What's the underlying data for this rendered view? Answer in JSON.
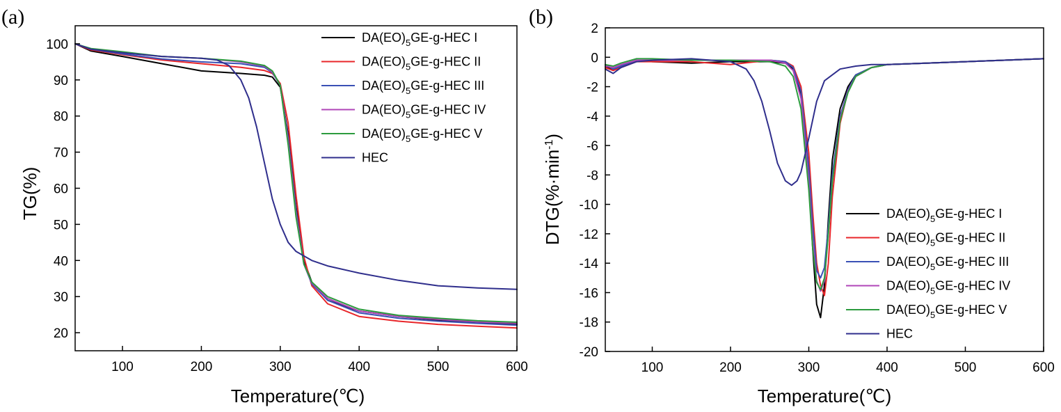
{
  "chart_data": [
    {
      "type": "line",
      "panel_label": "(a)",
      "xlabel": "Temperature(℃)",
      "ylabel": "TG(%)",
      "xlim": [
        40,
        600
      ],
      "ylim": [
        15,
        105
      ],
      "xticks": [
        "100",
        "200",
        "300",
        "400",
        "500",
        "600"
      ],
      "yticks": [
        "20",
        "30",
        "40",
        "50",
        "60",
        "70",
        "80",
        "90",
        "100"
      ],
      "legend_position": "top-right",
      "series": [
        {
          "name": "DA(EO)5GE-g-HEC I",
          "color": "#000000",
          "x": [
            40,
            60,
            100,
            150,
            200,
            250,
            280,
            290,
            300,
            310,
            320,
            330,
            340,
            360,
            400,
            450,
            500,
            550,
            600
          ],
          "y": [
            100,
            98,
            96.5,
            94.5,
            92.5,
            91.8,
            91.3,
            90.8,
            88,
            75,
            55,
            40,
            34,
            29,
            26,
            24.5,
            23.5,
            22.8,
            22.3
          ]
        },
        {
          "name": "DA(EO)5GE-g-HEC II",
          "color": "#e8262a",
          "x": [
            40,
            60,
            100,
            150,
            200,
            250,
            280,
            290,
            300,
            310,
            320,
            330,
            340,
            360,
            400,
            450,
            500,
            550,
            600
          ],
          "y": [
            100,
            98.3,
            97,
            95.5,
            94.5,
            93.5,
            92.6,
            91.8,
            89,
            78,
            58,
            41,
            33,
            28,
            24.5,
            23.2,
            22.3,
            21.8,
            21.3
          ]
        },
        {
          "name": "DA(EO)5GE-g-HEC III",
          "color": "#3a50b5",
          "x": [
            40,
            60,
            100,
            150,
            200,
            250,
            280,
            290,
            300,
            310,
            320,
            330,
            340,
            360,
            400,
            450,
            500,
            550,
            600
          ],
          "y": [
            100,
            98.5,
            97.2,
            95.8,
            95,
            94.5,
            93.5,
            92,
            88.5,
            74,
            54,
            39,
            33.5,
            29,
            25.5,
            24,
            23.2,
            22.6,
            22.1
          ]
        },
        {
          "name": "DA(EO)5GE-g-HEC IV",
          "color": "#b046b8",
          "x": [
            40,
            60,
            100,
            150,
            200,
            250,
            280,
            290,
            300,
            310,
            320,
            330,
            340,
            360,
            400,
            450,
            500,
            550,
            600
          ],
          "y": [
            100,
            98.6,
            97.5,
            96.5,
            96,
            95,
            93.8,
            92.2,
            88.5,
            73,
            53,
            39,
            33.8,
            29.5,
            26,
            24.5,
            23.7,
            23,
            22.6
          ]
        },
        {
          "name": "DA(EO)5GE-g-HEC V",
          "color": "#2c9b3e",
          "x": [
            40,
            60,
            100,
            150,
            200,
            250,
            280,
            290,
            300,
            310,
            320,
            330,
            340,
            360,
            400,
            450,
            500,
            550,
            600
          ],
          "y": [
            100,
            98.7,
            97.8,
            96.5,
            96,
            95.2,
            94,
            92.5,
            88.5,
            72,
            52,
            39,
            34,
            30,
            26.5,
            24.8,
            24,
            23.3,
            22.9
          ]
        },
        {
          "name": "HEC",
          "color": "#2f2e8c",
          "x": [
            40,
            60,
            100,
            150,
            200,
            220,
            235,
            250,
            260,
            270,
            280,
            290,
            300,
            310,
            320,
            340,
            360,
            400,
            450,
            500,
            550,
            600
          ],
          "y": [
            100,
            98.5,
            97.5,
            96.5,
            96,
            95.5,
            94,
            90,
            85,
            77,
            67,
            57,
            50,
            45,
            42.5,
            40,
            38.5,
            36.5,
            34.5,
            33,
            32.4,
            32
          ]
        }
      ]
    },
    {
      "type": "line",
      "panel_label": "(b)",
      "xlabel": "Temperature(℃)",
      "ylabel": "DTG(%·min",
      "ylabel_sup": "-1",
      "ylabel_end": ")",
      "xlim": [
        40,
        600
      ],
      "ylim": [
        -20,
        2
      ],
      "xticks": [
        "100",
        "200",
        "300",
        "400",
        "500",
        "600"
      ],
      "yticks": [
        "2",
        "0",
        "-2",
        "-4",
        "-6",
        "-8",
        "-10",
        "-12",
        "-14",
        "-16",
        "-18",
        "-20"
      ],
      "legend_position": "bottom-right",
      "series": [
        {
          "name": "DA(EO)5GE-g-HEC I",
          "color": "#000000",
          "x": [
            40,
            50,
            60,
            80,
            100,
            150,
            200,
            250,
            270,
            280,
            290,
            300,
            305,
            310,
            315,
            320,
            325,
            330,
            340,
            350,
            360,
            380,
            400,
            450,
            500,
            550,
            600
          ],
          "y": [
            -0.6,
            -0.9,
            -0.6,
            -0.2,
            -0.3,
            -0.4,
            -0.3,
            -0.3,
            -0.4,
            -0.8,
            -2.5,
            -8,
            -13,
            -16.8,
            -17.7,
            -15.5,
            -11,
            -7,
            -3.5,
            -2,
            -1.2,
            -0.7,
            -0.5,
            -0.4,
            -0.3,
            -0.2,
            -0.1
          ]
        },
        {
          "name": "DA(EO)5GE-g-HEC II",
          "color": "#e8262a",
          "x": [
            40,
            50,
            60,
            80,
            100,
            150,
            200,
            250,
            270,
            280,
            290,
            300,
            305,
            310,
            315,
            320,
            325,
            330,
            340,
            350,
            360,
            380,
            400,
            450,
            500,
            550,
            600
          ],
          "y": [
            -0.7,
            -0.9,
            -0.7,
            -0.3,
            -0.3,
            -0.3,
            -0.5,
            -0.2,
            -0.3,
            -0.6,
            -2,
            -6.5,
            -10.5,
            -14,
            -15.5,
            -16.2,
            -14,
            -9.5,
            -4.5,
            -2.3,
            -1.3,
            -0.7,
            -0.5,
            -0.4,
            -0.3,
            -0.2,
            -0.1
          ]
        },
        {
          "name": "DA(EO)5GE-g-HEC III",
          "color": "#3a50b5",
          "x": [
            40,
            50,
            60,
            80,
            100,
            150,
            200,
            250,
            270,
            280,
            290,
            300,
            305,
            310,
            315,
            320,
            325,
            330,
            340,
            350,
            360,
            380,
            400,
            450,
            500,
            550,
            600
          ],
          "y": [
            -0.5,
            -0.8,
            -0.6,
            -0.2,
            -0.2,
            -0.2,
            -0.2,
            -0.2,
            -0.3,
            -0.7,
            -2.3,
            -7.5,
            -11.5,
            -14.5,
            -15,
            -14.3,
            -11.5,
            -8,
            -4,
            -2.2,
            -1.2,
            -0.7,
            -0.5,
            -0.4,
            -0.3,
            -0.2,
            -0.1
          ]
        },
        {
          "name": "DA(EO)5GE-g-HEC IV",
          "color": "#b046b8",
          "x": [
            40,
            50,
            60,
            80,
            100,
            150,
            200,
            250,
            270,
            280,
            290,
            300,
            305,
            310,
            315,
            320,
            325,
            330,
            340,
            350,
            360,
            380,
            400,
            450,
            500,
            550,
            600
          ],
          "y": [
            -0.6,
            -0.7,
            -0.5,
            -0.2,
            -0.2,
            -0.2,
            -0.2,
            -0.2,
            -0.4,
            -0.9,
            -2.8,
            -8.5,
            -12.5,
            -15.2,
            -15.9,
            -15.2,
            -12,
            -8.5,
            -4.2,
            -2.3,
            -1.3,
            -0.7,
            -0.5,
            -0.4,
            -0.3,
            -0.2,
            -0.1
          ]
        },
        {
          "name": "DA(EO)5GE-g-HEC V",
          "color": "#2c9b3e",
          "x": [
            40,
            50,
            60,
            80,
            100,
            150,
            200,
            250,
            270,
            280,
            290,
            300,
            305,
            310,
            315,
            320,
            325,
            330,
            340,
            350,
            360,
            380,
            400,
            450,
            500,
            550,
            600
          ],
          "y": [
            -0.5,
            -0.6,
            -0.4,
            -0.1,
            -0.1,
            -0.2,
            -0.2,
            -0.3,
            -0.6,
            -1.3,
            -3.5,
            -9,
            -13,
            -15.3,
            -15.8,
            -15,
            -12,
            -8.5,
            -4.3,
            -2.4,
            -1.3,
            -0.7,
            -0.5,
            -0.4,
            -0.3,
            -0.2,
            -0.1
          ]
        },
        {
          "name": "HEC",
          "color": "#2f2e8c",
          "x": [
            40,
            50,
            60,
            80,
            100,
            150,
            200,
            220,
            230,
            240,
            250,
            260,
            270,
            278,
            285,
            290,
            300,
            310,
            320,
            340,
            360,
            380,
            400,
            450,
            500,
            550,
            600
          ],
          "y": [
            -0.8,
            -1.1,
            -0.7,
            -0.3,
            -0.2,
            -0.1,
            -0.3,
            -0.8,
            -1.6,
            -3,
            -5,
            -7.2,
            -8.4,
            -8.7,
            -8.4,
            -7.8,
            -5.5,
            -3,
            -1.6,
            -0.8,
            -0.6,
            -0.5,
            -0.5,
            -0.4,
            -0.3,
            -0.2,
            -0.1
          ]
        }
      ]
    }
  ]
}
